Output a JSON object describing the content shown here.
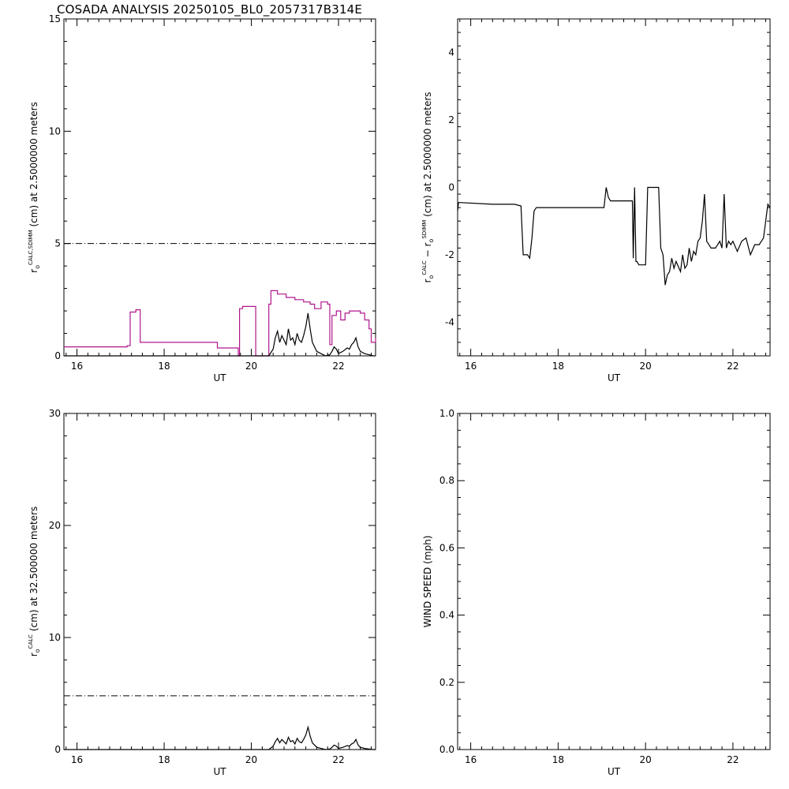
{
  "title": "COSADA ANALYSIS 20250105_BL0_2057317B314E",
  "colors": {
    "axis": "#000000",
    "calc": "#000000",
    "sdimm": "#b0168a",
    "reference": "#000000"
  },
  "chart_data": [
    {
      "type": "line",
      "id": "p1",
      "xlabel": "UT",
      "ylabel_parts": [
        "r",
        "o",
        "CALC,SDIMM",
        "(cm)  at  2.5000000 meters"
      ],
      "xlim": [
        15.7,
        22.85
      ],
      "ylim": [
        0,
        15
      ],
      "xticks": [
        16,
        18,
        20,
        22
      ],
      "yticks": [
        0,
        5,
        10,
        15
      ],
      "reference_line": {
        "y": 5,
        "style": "dash-dot"
      },
      "series": [
        {
          "key": "sdimm",
          "step": true,
          "x": [
            15.7,
            17.15,
            17.22,
            17.35,
            17.45,
            19.12,
            19.22,
            19.65,
            19.7,
            19.73,
            19.8,
            20.08,
            20.1,
            20.35,
            20.4,
            20.45,
            20.6,
            20.8,
            21.0,
            21.2,
            21.35,
            21.45,
            21.6,
            21.75,
            21.8,
            21.85,
            21.95,
            22.05,
            22.15,
            22.25,
            22.5,
            22.6,
            22.7,
            22.75,
            22.85
          ],
          "y": [
            0.4,
            0.45,
            1.95,
            2.05,
            0.6,
            0.6,
            0.35,
            0.35,
            0.0,
            2.1,
            2.2,
            2.2,
            0.0,
            0.0,
            2.3,
            2.9,
            2.75,
            2.6,
            2.5,
            2.4,
            2.3,
            2.1,
            2.4,
            2.3,
            0.5,
            1.8,
            2.0,
            1.6,
            1.9,
            2.0,
            1.9,
            1.6,
            1.2,
            0.6,
            0.8
          ]
        },
        {
          "key": "calc",
          "step": false,
          "x": [
            15.7,
            20.4,
            20.5,
            20.55,
            20.6,
            20.65,
            20.7,
            20.8,
            20.85,
            20.9,
            20.95,
            21.0,
            21.05,
            21.1,
            21.15,
            21.2,
            21.25,
            21.3,
            21.35,
            21.4,
            21.45,
            21.5,
            21.6,
            21.7,
            21.8,
            21.85,
            21.9,
            21.95,
            22.0,
            22.1,
            22.2,
            22.25,
            22.3,
            22.35,
            22.4,
            22.45,
            22.5,
            22.6,
            22.7,
            22.8,
            22.85
          ],
          "y": [
            0,
            0,
            0.3,
            0.8,
            1.1,
            0.6,
            0.9,
            0.5,
            1.2,
            0.7,
            0.8,
            0.5,
            1.0,
            0.7,
            0.6,
            0.9,
            1.3,
            1.9,
            1.2,
            0.6,
            0.4,
            0.2,
            0.1,
            0.0,
            0.05,
            0.2,
            0.4,
            0.3,
            0.1,
            0.2,
            0.35,
            0.3,
            0.5,
            0.6,
            0.8,
            0.4,
            0.2,
            0.1,
            0.05,
            0.0,
            0.0
          ]
        }
      ]
    },
    {
      "type": "line",
      "id": "p2",
      "xlabel": "UT",
      "ylabel_parts": [
        "r",
        "o",
        "CALC",
        " − ",
        "r",
        "o",
        "SDIMM",
        "(cm)  at  2.5000000 meters"
      ],
      "xlim": [
        15.7,
        22.85
      ],
      "ylim": [
        -5,
        5
      ],
      "xticks": [
        16,
        18,
        20,
        22
      ],
      "yticks": [
        -4,
        -2,
        0,
        2,
        4
      ],
      "series": [
        {
          "key": "diff",
          "step": false,
          "x": [
            15.7,
            15.72,
            15.75,
            16.5,
            17.0,
            17.15,
            17.2,
            17.3,
            17.35,
            17.4,
            17.45,
            17.5,
            19.05,
            19.1,
            19.15,
            19.2,
            19.5,
            19.7,
            19.72,
            19.75,
            19.78,
            19.8,
            19.85,
            20.0,
            20.05,
            20.08,
            20.1,
            20.3,
            20.35,
            20.4,
            20.45,
            20.5,
            20.55,
            20.6,
            20.65,
            20.7,
            20.8,
            20.85,
            20.9,
            20.95,
            21.0,
            21.05,
            21.1,
            21.15,
            21.2,
            21.25,
            21.3,
            21.35,
            21.4,
            21.45,
            21.5,
            21.6,
            21.7,
            21.75,
            21.8,
            21.85,
            21.9,
            21.95,
            22.0,
            22.1,
            22.2,
            22.3,
            22.4,
            22.5,
            22.6,
            22.7,
            22.75,
            22.8,
            22.85
          ],
          "y": [
            -0.7,
            -0.45,
            -0.45,
            -0.5,
            -0.5,
            -0.55,
            -2.0,
            -2.0,
            -2.1,
            -1.5,
            -0.7,
            -0.6,
            -0.6,
            0.0,
            -0.3,
            -0.4,
            -0.4,
            -0.4,
            -2.1,
            0.0,
            -2.2,
            -2.2,
            -2.3,
            -2.3,
            0.0,
            0.0,
            0.0,
            0.0,
            -1.8,
            -2.0,
            -2.9,
            -2.6,
            -2.5,
            -2.1,
            -2.4,
            -2.2,
            -2.5,
            -2.0,
            -2.4,
            -2.3,
            -1.8,
            -2.2,
            -1.9,
            -2.0,
            -1.6,
            -1.5,
            -1.0,
            -0.2,
            -1.6,
            -1.7,
            -1.8,
            -1.8,
            -1.6,
            -1.8,
            -0.2,
            -1.8,
            -1.6,
            -1.7,
            -1.6,
            -1.9,
            -1.6,
            -1.5,
            -2.0,
            -1.7,
            -1.7,
            -1.5,
            -1.0,
            -0.5,
            -0.6
          ]
        }
      ]
    },
    {
      "type": "line",
      "id": "p3",
      "xlabel": "UT",
      "ylabel_parts": [
        "r",
        "o",
        "CALC",
        "(cm)  at  32.500000 meters"
      ],
      "xlim": [
        15.7,
        22.85
      ],
      "ylim": [
        0,
        30
      ],
      "xticks": [
        16,
        18,
        20,
        22
      ],
      "yticks": [
        0,
        10,
        20,
        30
      ],
      "reference_line": {
        "y": 4.8,
        "style": "dash-dot"
      },
      "series": [
        {
          "key": "calc",
          "step": false,
          "x": [
            15.7,
            20.4,
            20.5,
            20.55,
            20.6,
            20.65,
            20.7,
            20.8,
            20.85,
            20.9,
            20.95,
            21.0,
            21.05,
            21.1,
            21.15,
            21.2,
            21.25,
            21.3,
            21.35,
            21.4,
            21.45,
            21.5,
            21.6,
            21.7,
            21.8,
            21.85,
            21.9,
            21.95,
            22.0,
            22.1,
            22.2,
            22.25,
            22.3,
            22.35,
            22.4,
            22.45,
            22.5,
            22.6,
            22.7,
            22.8,
            22.85
          ],
          "y": [
            0,
            0,
            0.3,
            0.7,
            1.0,
            0.6,
            0.9,
            0.5,
            1.1,
            0.7,
            0.8,
            0.5,
            1.0,
            0.7,
            0.6,
            0.9,
            1.3,
            2.0,
            1.2,
            0.6,
            0.4,
            0.2,
            0.1,
            0.0,
            0.05,
            0.2,
            0.4,
            0.3,
            0.1,
            0.2,
            0.35,
            0.3,
            0.5,
            0.6,
            0.9,
            0.4,
            0.2,
            0.1,
            0.05,
            0.0,
            0.0
          ]
        }
      ]
    },
    {
      "type": "line",
      "id": "p4",
      "xlabel": "UT",
      "ylabel_parts": [
        "WIND SPEED (mph)"
      ],
      "xlim": [
        15.7,
        22.85
      ],
      "ylim": [
        0,
        1
      ],
      "xticks": [
        16,
        18,
        20,
        22
      ],
      "yticks": [
        0.0,
        0.2,
        0.4,
        0.6,
        0.8,
        1.0
      ],
      "ytick_labels": [
        "0.0",
        "0.2",
        "0.4",
        "0.6",
        "0.8",
        "1.0"
      ],
      "series": []
    }
  ]
}
